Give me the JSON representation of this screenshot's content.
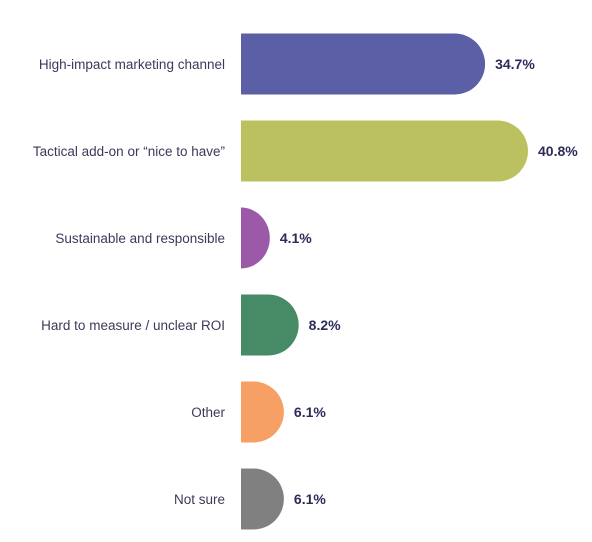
{
  "chart_data": {
    "type": "bar",
    "orientation": "horizontal",
    "categories": [
      "High-impact marketing channel",
      "Tactical add-on or “nice to have”",
      "Sustainable and responsible",
      "Hard to measure / unclear ROI",
      "Other",
      "Not sure"
    ],
    "values": [
      34.7,
      40.8,
      4.1,
      8.2,
      6.1,
      6.1
    ],
    "value_labels": [
      "34.7%",
      "40.8%",
      "4.1%",
      "8.2%",
      "6.1%",
      "6.1%"
    ],
    "colors": [
      "#5b5fa6",
      "#bcc15f",
      "#9b59a8",
      "#478a66",
      "#f7a066",
      "#808080"
    ],
    "unit": "%",
    "grid": false,
    "legend": "none",
    "xlim": [
      0,
      40.8
    ]
  }
}
